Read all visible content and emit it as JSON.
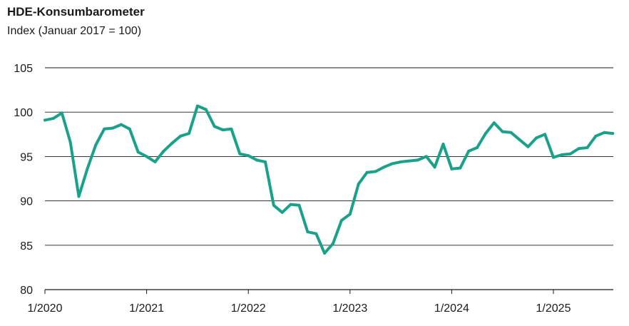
{
  "chart_data": {
    "type": "line",
    "title": "HDE-Konsumbarometer",
    "subtitle": "Index (Januar 2017 = 100)",
    "xlabel": "",
    "ylabel": "",
    "ylim": [
      80,
      105
    ],
    "yticks": [
      80,
      85,
      90,
      95,
      100,
      105
    ],
    "xticks": [
      "1/2020",
      "1/2021",
      "1/2022",
      "1/2023",
      "1/2024",
      "1/2025"
    ],
    "grid": true,
    "line_color": "#1aa18a",
    "x_start": "1/2020",
    "series": [
      {
        "values": [
          99.1,
          99.3,
          99.9,
          96.6,
          90.5,
          93.6,
          96.3,
          98.1,
          98.2,
          98.6,
          98.1,
          95.5,
          95.0,
          94.4,
          95.6,
          96.5,
          97.3,
          97.6,
          100.7,
          100.3,
          98.4,
          98.0,
          98.1,
          95.3,
          95.1,
          94.6,
          94.4,
          89.5,
          88.7,
          89.6,
          89.5,
          86.5,
          86.3,
          84.1,
          85.2,
          87.8,
          88.5,
          91.9,
          93.2,
          93.3,
          93.8,
          94.2,
          94.4,
          94.5,
          94.6,
          95.0,
          93.8,
          96.4,
          93.6,
          93.7,
          95.6,
          96.0,
          97.6,
          98.8,
          97.8,
          97.7,
          96.9,
          96.1,
          97.1,
          97.5,
          94.9,
          95.2,
          95.3,
          95.9,
          96.0,
          97.3,
          97.7,
          97.6
        ]
      }
    ]
  }
}
